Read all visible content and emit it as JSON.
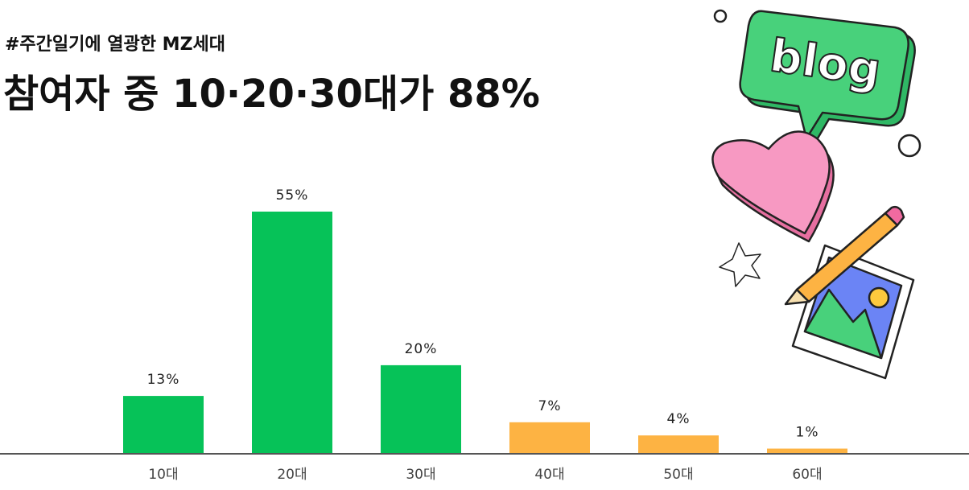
{
  "chart_data": {
    "type": "bar",
    "subtitle": "#주간일기에 열광한 MZ세대",
    "title": "참여자 중 10·20·30대가 88%",
    "categories": [
      "10대",
      "20대",
      "30대",
      "40대",
      "50대",
      "60대"
    ],
    "values": [
      13,
      55,
      20,
      7,
      4,
      1
    ],
    "value_labels": [
      "13%",
      "55%",
      "20%",
      "7%",
      "4%",
      "1%"
    ],
    "colors": [
      "#06c258",
      "#06c258",
      "#06c258",
      "#fdb343",
      "#fdb343",
      "#fdb343"
    ],
    "illustration_text": "blog"
  }
}
